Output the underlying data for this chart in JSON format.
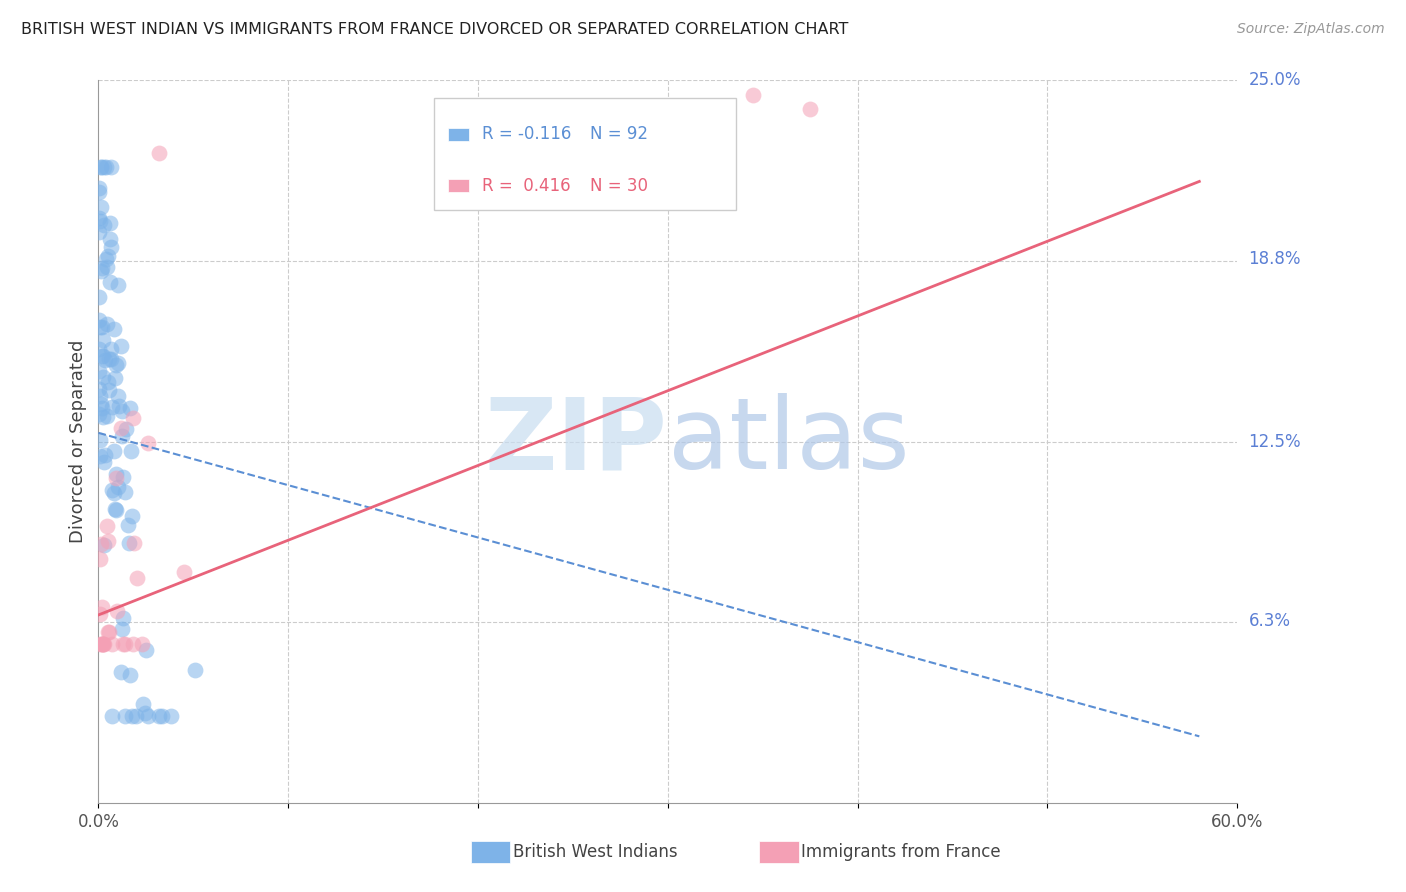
{
  "title": "BRITISH WEST INDIAN VS IMMIGRANTS FROM FRANCE DIVORCED OR SEPARATED CORRELATION CHART",
  "source": "Source: ZipAtlas.com",
  "ylabel": "Divorced or Separated",
  "xlim": [
    0.0,
    0.6
  ],
  "ylim": [
    0.0,
    0.25
  ],
  "blue_R": -0.116,
  "blue_N": 92,
  "pink_R": 0.416,
  "pink_N": 30,
  "blue_color": "#7EB3E8",
  "pink_color": "#F4A0B5",
  "blue_line_color": "#5B8FD4",
  "pink_line_color": "#E8637A",
  "legend_blue_label": "British West Indians",
  "legend_pink_label": "Immigrants from France",
  "ytick_labels_right": [
    "25.0%",
    "18.8%",
    "12.5%",
    "6.3%"
  ],
  "ytick_values_right": [
    0.25,
    0.188,
    0.125,
    0.063
  ],
  "blue_line_x0": 0.0,
  "blue_line_y0": 0.128,
  "blue_line_x1": 0.58,
  "blue_line_y1": 0.023,
  "pink_line_x0": 0.0,
  "pink_line_y0": 0.065,
  "pink_line_x1": 0.58,
  "pink_line_y1": 0.215,
  "watermark_zip_color": "#C8DDF0",
  "watermark_atlas_color": "#B0C8E8",
  "right_label_color": "#5B7FD4",
  "grid_color": "#CCCCCC",
  "axis_label_color": "#555555",
  "title_color": "#222222",
  "source_color": "#999999"
}
